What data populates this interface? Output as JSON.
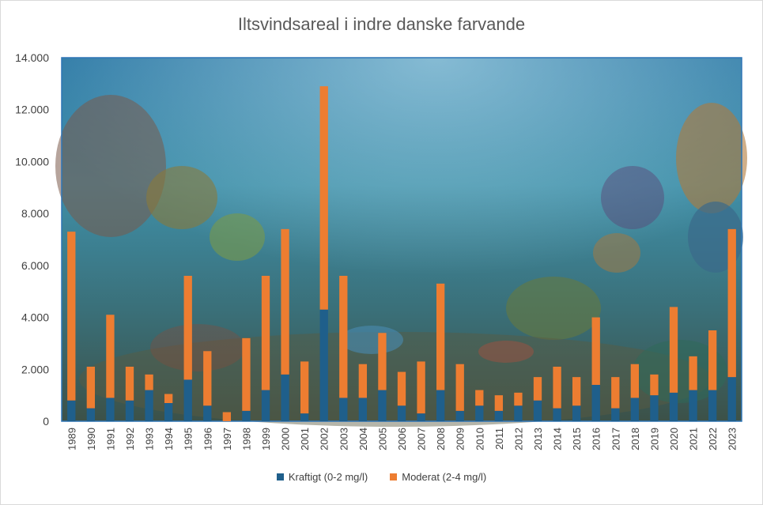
{
  "chart_data": {
    "type": "bar",
    "stacked": true,
    "title": "Iltsvindsareal i indre danske farvande",
    "categories": [
      "1989",
      "1990",
      "1991",
      "1992",
      "1993",
      "1994",
      "1995",
      "1996",
      "1997",
      "1998",
      "1999",
      "2000",
      "2001",
      "2002",
      "2003",
      "2004",
      "2005",
      "2006",
      "2007",
      "2008",
      "2009",
      "2010",
      "2011",
      "2012",
      "2013",
      "2014",
      "2015",
      "2016",
      "2017",
      "2018",
      "2019",
      "2020",
      "2021",
      "2022",
      "2023"
    ],
    "series": [
      {
        "name": "Kraftigt (0-2 mg/l)",
        "color": "#1f5f8b",
        "values": [
          800,
          500,
          900,
          800,
          1200,
          700,
          1600,
          600,
          0,
          400,
          1200,
          1800,
          300,
          4300,
          900,
          900,
          1200,
          600,
          300,
          1200,
          400,
          600,
          400,
          600,
          800,
          500,
          600,
          1400,
          500,
          900,
          1000,
          1100,
          1200,
          1200,
          1700
        ]
      },
      {
        "name": "Moderat (2-4 mg/l)",
        "color": "#ed7d31",
        "values": [
          6500,
          1600,
          3200,
          1300,
          600,
          350,
          4000,
          2100,
          350,
          2800,
          4400,
          5600,
          2000,
          8600,
          4700,
          1300,
          2200,
          1300,
          2000,
          4100,
          1800,
          600,
          600,
          500,
          900,
          1600,
          1100,
          2600,
          1200,
          1300,
          800,
          3300,
          1300,
          2300,
          5700
        ]
      }
    ],
    "y_ticks": [
      "0",
      "2.000",
      "4.000",
      "6.000",
      "8.000",
      "10.000",
      "12.000",
      "14.000"
    ],
    "ylim": [
      0,
      14000
    ],
    "grid": false,
    "legend_position": "bottom",
    "background": "underwater illustration"
  }
}
